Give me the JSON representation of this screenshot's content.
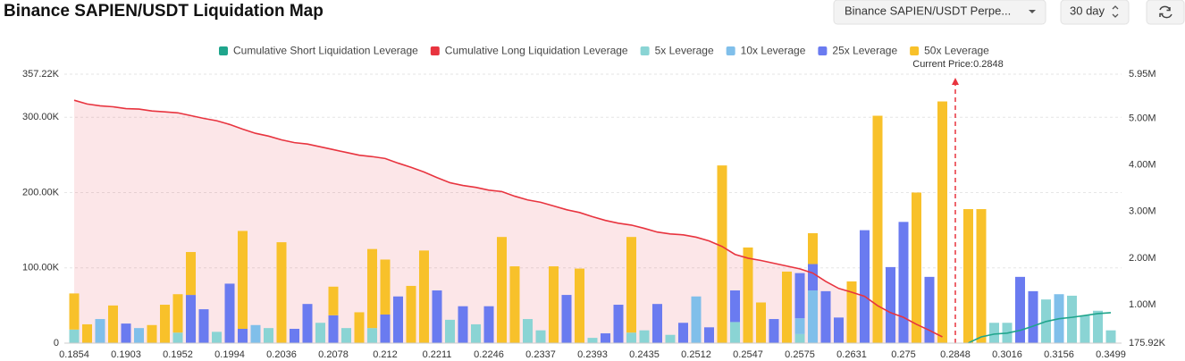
{
  "header": {
    "title": "Binance SAPIEN/USDT Liquidation Map",
    "exchange_select": "Binance SAPIEN/USDT Perpe...",
    "period_select": "30 day"
  },
  "chart_data": {
    "type": "bar",
    "annotation": "Current Price:0.2848",
    "categories": [
      "0.1854",
      null,
      null,
      null,
      "0.1903",
      null,
      null,
      null,
      "0.1952",
      null,
      null,
      null,
      "0.1994",
      null,
      null,
      null,
      "0.2036",
      null,
      null,
      null,
      "0.2078",
      null,
      null,
      null,
      "0.212",
      null,
      null,
      null,
      "0.2211",
      null,
      null,
      null,
      "0.2246",
      null,
      null,
      null,
      "0.2337",
      null,
      null,
      null,
      "0.2393",
      null,
      null,
      null,
      "0.2435",
      null,
      null,
      null,
      "0.2512",
      null,
      null,
      null,
      "0.2547",
      null,
      null,
      null,
      "0.2575",
      null,
      null,
      null,
      "0.2631",
      null,
      null,
      null,
      "0.275",
      null,
      null,
      null,
      "0.2848",
      null,
      null,
      null,
      "0.3016",
      null,
      null,
      null,
      "0.3156",
      null,
      null,
      null,
      "0.3499"
    ],
    "ylim": [
      0,
      357220
    ],
    "yticks": [
      0,
      {
        "value": 100000,
        "label": "100.00K"
      },
      {
        "value": 200000,
        "label": "200.00K"
      },
      {
        "value": 300000,
        "label": "300.00K"
      },
      {
        "value": 357220,
        "label": "357.22K"
      }
    ],
    "y2lim": [
      175920,
      5950000
    ],
    "y2ticks": [
      {
        "value": 175920,
        "label": "175.92K"
      },
      {
        "value": 1000000,
        "label": "1.00M"
      },
      {
        "value": 2000000,
        "label": "2.00M"
      },
      {
        "value": 3000000,
        "label": "3.00M"
      },
      {
        "value": 4000000,
        "label": "4.00M"
      },
      {
        "value": 5000000,
        "label": "5.00M"
      },
      {
        "value": 5950000,
        "label": "5.95M"
      }
    ],
    "grid": true,
    "series": [
      {
        "name": "Cumulative Short Liquidation Leverage",
        "type": "line",
        "axis": "y2",
        "color": "#1fa58c",
        "values": [
          null,
          null,
          null,
          null,
          null,
          null,
          null,
          null,
          null,
          null,
          null,
          null,
          null,
          null,
          null,
          null,
          null,
          null,
          null,
          null,
          null,
          null,
          null,
          null,
          null,
          null,
          null,
          null,
          null,
          null,
          null,
          null,
          null,
          null,
          null,
          null,
          null,
          null,
          null,
          null,
          null,
          null,
          null,
          null,
          null,
          null,
          null,
          null,
          null,
          null,
          null,
          null,
          null,
          null,
          null,
          null,
          null,
          null,
          null,
          null,
          null,
          null,
          null,
          null,
          null,
          null,
          null,
          null,
          null,
          180000,
          310000,
          370000,
          390000,
          450000,
          540000,
          640000,
          700000,
          730000,
          770000,
          810000,
          830000
        ]
      },
      {
        "name": "Cumulative Long Liquidation Leverage",
        "type": "line",
        "axis": "y2",
        "color": "#e8343f",
        "values": [
          5390000,
          5310000,
          5270000,
          5250000,
          5210000,
          5200000,
          5160000,
          5140000,
          5120000,
          5060000,
          5000000,
          4950000,
          4870000,
          4770000,
          4680000,
          4620000,
          4540000,
          4480000,
          4450000,
          4390000,
          4330000,
          4270000,
          4210000,
          4180000,
          4140000,
          4040000,
          3950000,
          3850000,
          3730000,
          3620000,
          3560000,
          3520000,
          3460000,
          3430000,
          3330000,
          3250000,
          3200000,
          3120000,
          3040000,
          2980000,
          2890000,
          2810000,
          2750000,
          2710000,
          2640000,
          2560000,
          2520000,
          2500000,
          2450000,
          2370000,
          2250000,
          2080000,
          2000000,
          1950000,
          1890000,
          1830000,
          1770000,
          1680000,
          1500000,
          1350000,
          1270000,
          1180000,
          980000,
          830000,
          730000,
          580000,
          450000,
          310000,
          null,
          null,
          null,
          null,
          null,
          null,
          null,
          null,
          null,
          null,
          null,
          null,
          null
        ]
      },
      {
        "name": "5x Leverage",
        "type": "bar",
        "color": "#8ad4d4",
        "values": [
          18000,
          null,
          null,
          null,
          null,
          null,
          null,
          null,
          14000,
          null,
          null,
          15000,
          null,
          null,
          null,
          20000,
          null,
          null,
          null,
          27000,
          null,
          20000,
          null,
          20000,
          null,
          null,
          null,
          null,
          null,
          31000,
          null,
          25000,
          null,
          null,
          null,
          32000,
          17000,
          null,
          null,
          null,
          7000,
          null,
          null,
          14000,
          17000,
          null,
          11000,
          null,
          null,
          null,
          null,
          28000,
          null,
          null,
          null,
          null,
          12000,
          null,
          null,
          null,
          null,
          null,
          null,
          null,
          null,
          null,
          null,
          null,
          null,
          null,
          null,
          27000,
          27000,
          null,
          null,
          58000,
          null,
          63000,
          37000,
          43000,
          17000
        ]
      },
      {
        "name": "10x Leverage",
        "type": "bar",
        "color": "#80bfea",
        "values": [
          null,
          null,
          32000,
          null,
          null,
          20000,
          null,
          null,
          null,
          null,
          null,
          null,
          null,
          null,
          24000,
          null,
          null,
          null,
          null,
          null,
          null,
          null,
          null,
          null,
          null,
          null,
          null,
          null,
          null,
          null,
          null,
          null,
          null,
          null,
          null,
          null,
          null,
          null,
          null,
          null,
          null,
          null,
          null,
          null,
          null,
          null,
          null,
          null,
          62000,
          null,
          null,
          null,
          null,
          null,
          null,
          null,
          21000,
          70000,
          null,
          null,
          null,
          null,
          null,
          null,
          null,
          null,
          null,
          null,
          null,
          null,
          null,
          null,
          null,
          null,
          null,
          null,
          65000,
          null,
          null,
          null,
          null
        ]
      },
      {
        "name": "25x Leverage",
        "type": "bar",
        "color": "#6a7bf0",
        "values": [
          null,
          null,
          null,
          null,
          26000,
          null,
          null,
          null,
          null,
          64000,
          45000,
          null,
          79000,
          19000,
          null,
          null,
          null,
          19000,
          52000,
          null,
          37000,
          null,
          null,
          null,
          38000,
          62000,
          null,
          null,
          70000,
          null,
          49000,
          null,
          49000,
          null,
          null,
          null,
          null,
          null,
          64000,
          null,
          null,
          13000,
          51000,
          null,
          null,
          52000,
          null,
          27000,
          null,
          21000,
          null,
          42000,
          null,
          null,
          32000,
          null,
          60000,
          35000,
          69000,
          34000,
          null,
          150000,
          null,
          101000,
          161000,
          null,
          88000,
          null,
          null,
          null,
          null,
          null,
          null,
          88000,
          69000,
          null,
          null,
          null,
          null,
          null,
          null
        ]
      },
      {
        "name": "50x Leverage",
        "type": "bar",
        "color": "#f8c12a",
        "values": [
          48000,
          25000,
          null,
          50000,
          null,
          null,
          24000,
          51000,
          51000,
          57000,
          null,
          null,
          null,
          130000,
          null,
          null,
          134000,
          null,
          null,
          null,
          38000,
          null,
          41000,
          105000,
          73000,
          null,
          76000,
          123000,
          null,
          null,
          null,
          null,
          null,
          141000,
          102000,
          null,
          null,
          102000,
          null,
          99000,
          null,
          null,
          null,
          127000,
          null,
          null,
          null,
          null,
          null,
          null,
          236000,
          null,
          127000,
          54000,
          null,
          95000,
          null,
          41000,
          null,
          null,
          82000,
          null,
          302000,
          null,
          null,
          200000,
          null,
          321000,
          null,
          178000,
          178000,
          null,
          null,
          null,
          null,
          null,
          null,
          null,
          null,
          null,
          null
        ]
      }
    ]
  }
}
